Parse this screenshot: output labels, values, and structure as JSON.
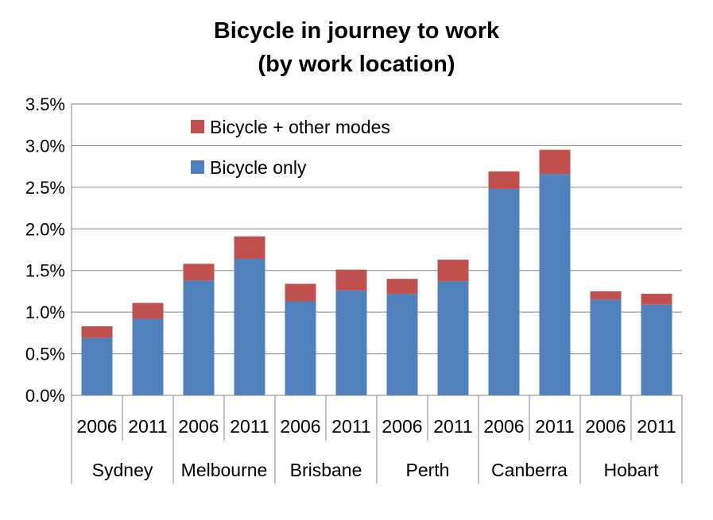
{
  "chart_data": {
    "type": "bar",
    "stacked": true,
    "title_lines": [
      "Bicycle in journey to work",
      "(by work location)"
    ],
    "categories": [
      "2006",
      "2011",
      "2006",
      "2011",
      "2006",
      "2011",
      "2006",
      "2011",
      "2006",
      "2011",
      "2006",
      "2011"
    ],
    "groups": [
      {
        "name": "Sydney",
        "years": [
          "2006",
          "2011"
        ]
      },
      {
        "name": "Melbourne",
        "years": [
          "2006",
          "2011"
        ]
      },
      {
        "name": "Brisbane",
        "years": [
          "2006",
          "2011"
        ]
      },
      {
        "name": "Perth",
        "years": [
          "2006",
          "2011"
        ]
      },
      {
        "name": "Canberra",
        "years": [
          "2006",
          "2011"
        ]
      },
      {
        "name": "Hobart",
        "years": [
          "2006",
          "2011"
        ]
      }
    ],
    "series": [
      {
        "name": "Bicycle only",
        "color": "#4F81BD",
        "values": [
          0.0069,
          0.0092,
          0.0138,
          0.0164,
          0.0113,
          0.0126,
          0.0122,
          0.0137,
          0.0248,
          0.0266,
          0.0115,
          0.0109
        ]
      },
      {
        "name": "Bicycle + other modes",
        "color": "#C0504D",
        "values": [
          0.0014,
          0.0019,
          0.002,
          0.0027,
          0.0021,
          0.0025,
          0.0018,
          0.0026,
          0.0021,
          0.0029,
          0.001,
          0.0013
        ]
      }
    ],
    "legend_order": [
      "Bicycle + other modes",
      "Bicycle only"
    ],
    "legend_position": "top-left",
    "ylim": [
      0,
      0.035
    ],
    "yticks": [
      "0.0%",
      "0.5%",
      "1.0%",
      "1.5%",
      "2.0%",
      "2.5%",
      "3.0%",
      "3.5%"
    ],
    "grid": true,
    "xlabel": "",
    "ylabel": ""
  }
}
